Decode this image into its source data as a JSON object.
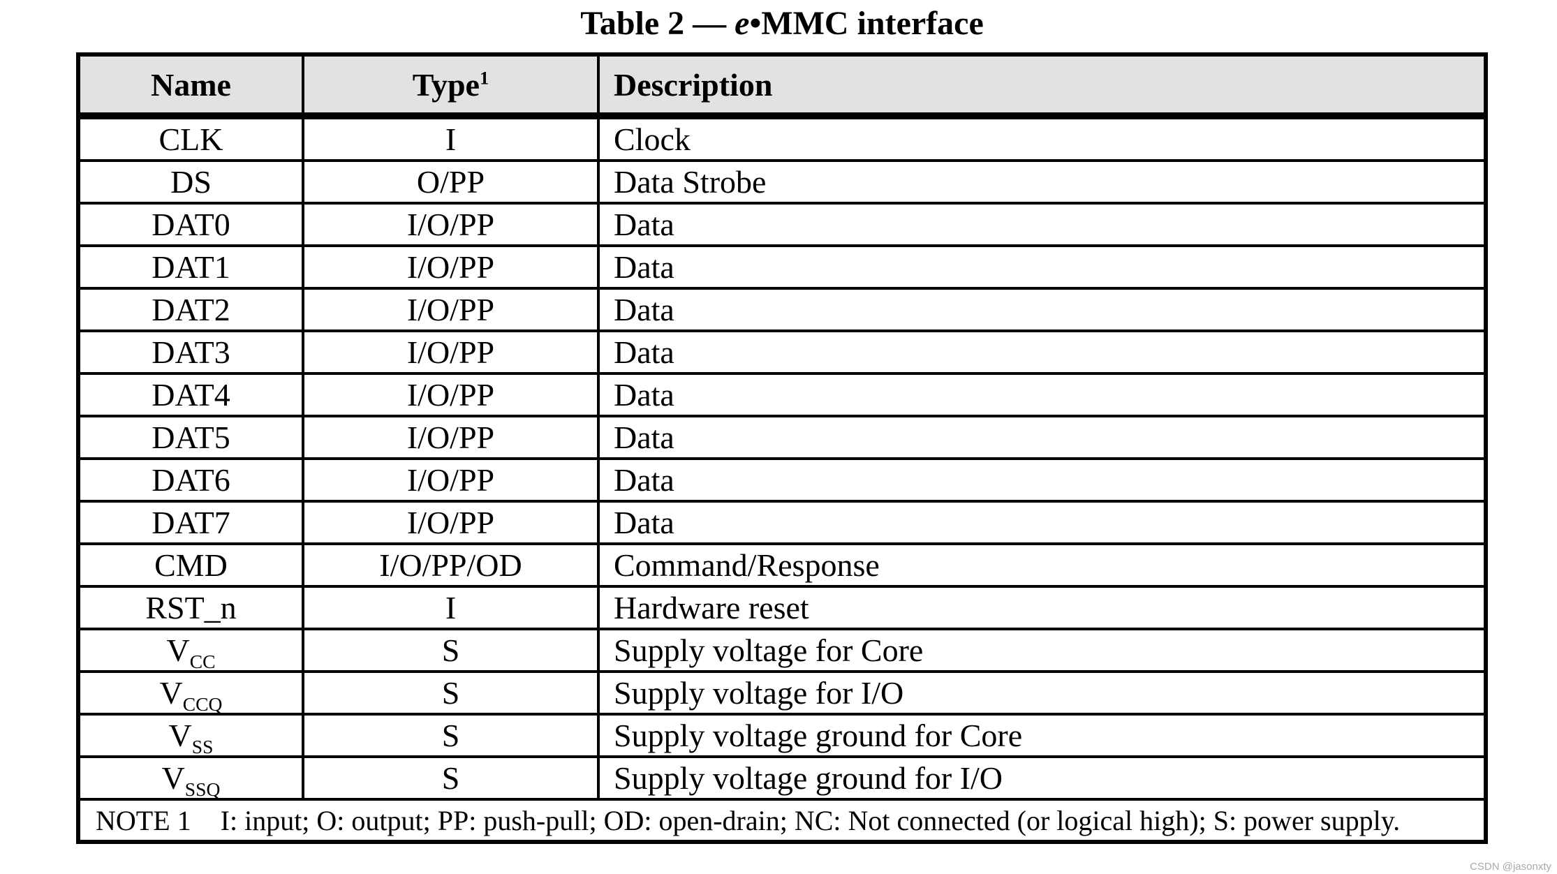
{
  "title": {
    "prefix": "Table 2 — ",
    "emphasis": "e",
    "suffix": "•MMC interface"
  },
  "table": {
    "header_bg": "#e2e2e2",
    "border_color": "#000000",
    "headers": {
      "name": "Name",
      "type": "Type",
      "type_sup": "1",
      "description": "Description"
    },
    "rows": [
      {
        "name": "CLK",
        "type": "I",
        "description": "Clock"
      },
      {
        "name": "DS",
        "type": "O/PP",
        "description": "Data Strobe"
      },
      {
        "name": "DAT0",
        "type": "I/O/PP",
        "description": "Data"
      },
      {
        "name": "DAT1",
        "type": "I/O/PP",
        "description": "Data"
      },
      {
        "name": "DAT2",
        "type": "I/O/PP",
        "description": "Data"
      },
      {
        "name": "DAT3",
        "type": "I/O/PP",
        "description": "Data"
      },
      {
        "name": "DAT4",
        "type": "I/O/PP",
        "description": "Data"
      },
      {
        "name": "DAT5",
        "type": "I/O/PP",
        "description": "Data"
      },
      {
        "name": "DAT6",
        "type": "I/O/PP",
        "description": "Data"
      },
      {
        "name": "DAT7",
        "type": "I/O/PP",
        "description": "Data"
      },
      {
        "name": "CMD",
        "type": "I/O/PP/OD",
        "description": "Command/Response"
      },
      {
        "name": "RST_n",
        "type": "I",
        "description": "Hardware reset"
      },
      {
        "name": "V",
        "name_sub": "CC",
        "type": "S",
        "description": "Supply voltage for Core"
      },
      {
        "name": "V",
        "name_sub": "CCQ",
        "type": "S",
        "description": "Supply voltage for I/O"
      },
      {
        "name": "V",
        "name_sub": "SS",
        "type": "S",
        "description": "Supply voltage ground for Core"
      },
      {
        "name": "V",
        "name_sub": "SSQ",
        "type": "S",
        "description": "Supply voltage ground for I/O"
      }
    ],
    "note": {
      "label": "NOTE 1",
      "text": "I: input; O: output; PP: push-pull; OD: open-drain; NC: Not connected (or logical high); S: power supply."
    }
  },
  "watermark": {
    "text": "CSDN @jasonxty",
    "color": "#a9a9a9"
  }
}
